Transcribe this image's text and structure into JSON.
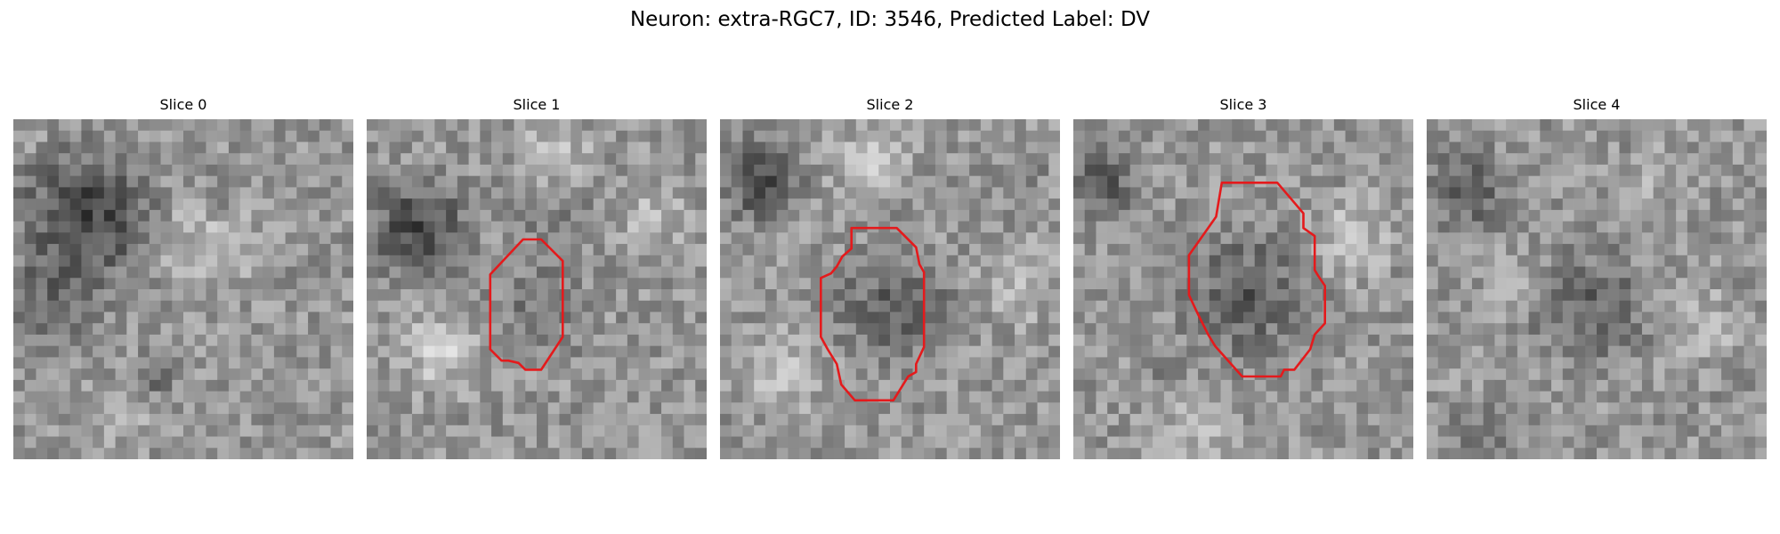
{
  "figure": {
    "title": "Neuron: extra-RGC7, ID: 3546, Predicted Label: DV",
    "contour_color": "#e41a1c"
  },
  "panels": [
    {
      "title": "Slice 0",
      "seed": 11,
      "has_contour": false
    },
    {
      "title": "Slice 1",
      "seed": 23,
      "has_contour": true
    },
    {
      "title": "Slice 2",
      "seed": 37,
      "has_contour": true
    },
    {
      "title": "Slice 3",
      "seed": 53,
      "has_contour": true
    },
    {
      "title": "Slice 4",
      "seed": 71,
      "has_contour": false
    }
  ]
}
